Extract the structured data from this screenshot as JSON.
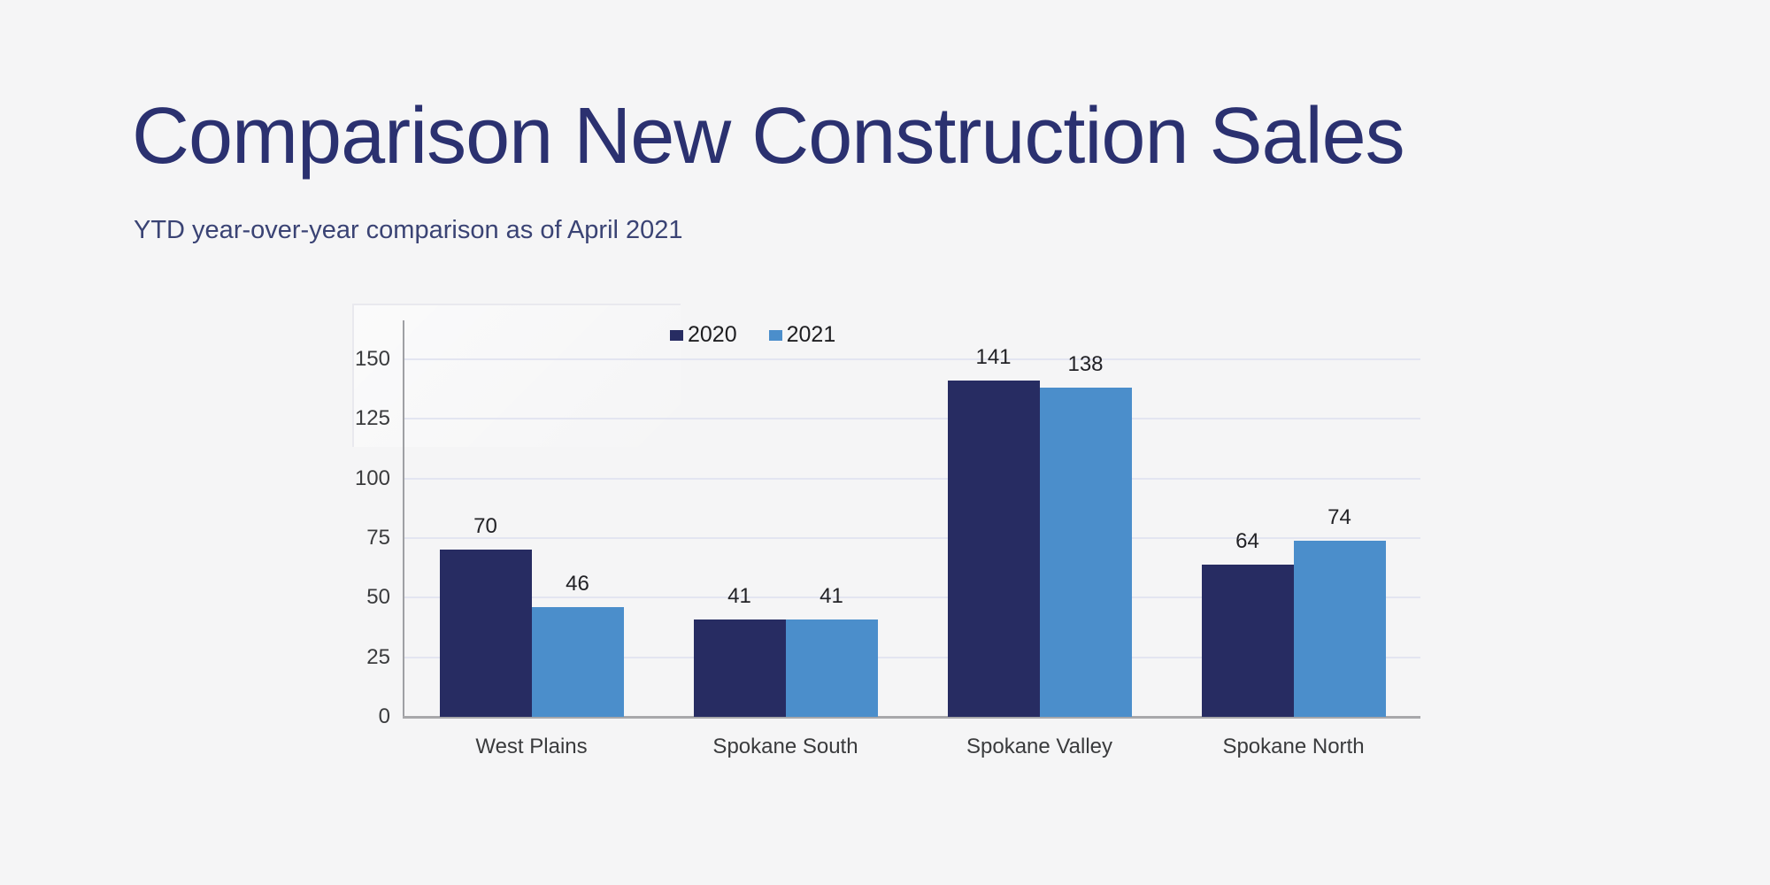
{
  "header": {
    "title": "Comparison New Construction Sales",
    "subtitle": "YTD year-over-year comparison as of April 2021"
  },
  "chart_data": {
    "type": "bar",
    "title": "Comparison New Construction Sales",
    "subtitle": "YTD year-over-year comparison as of April 2021",
    "categories": [
      "West Plains",
      "Spokane South",
      "Spokane Valley",
      "Spokane North"
    ],
    "series": [
      {
        "name": "2020",
        "color": "#272c62",
        "values": [
          70,
          41,
          141,
          64
        ]
      },
      {
        "name": "2021",
        "color": "#4b8ecb",
        "values": [
          46,
          41,
          138,
          74
        ]
      }
    ],
    "xlabel": "",
    "ylabel": "",
    "ylim": [
      0,
      150
    ],
    "yticks": [
      0,
      25,
      50,
      75,
      100,
      125,
      150
    ],
    "grid": true,
    "legend_position": "top-center",
    "value_labels": true
  },
  "colors": {
    "background": "#f5f5f6",
    "title_text": "#2b3170",
    "subtitle_text": "#3a4374",
    "series_2020": "#272c62",
    "series_2021": "#4b8ecb",
    "gridline": "#e3e5f1",
    "axis_line": "#a8a8ab",
    "tick_text": "#3a3b3d"
  }
}
